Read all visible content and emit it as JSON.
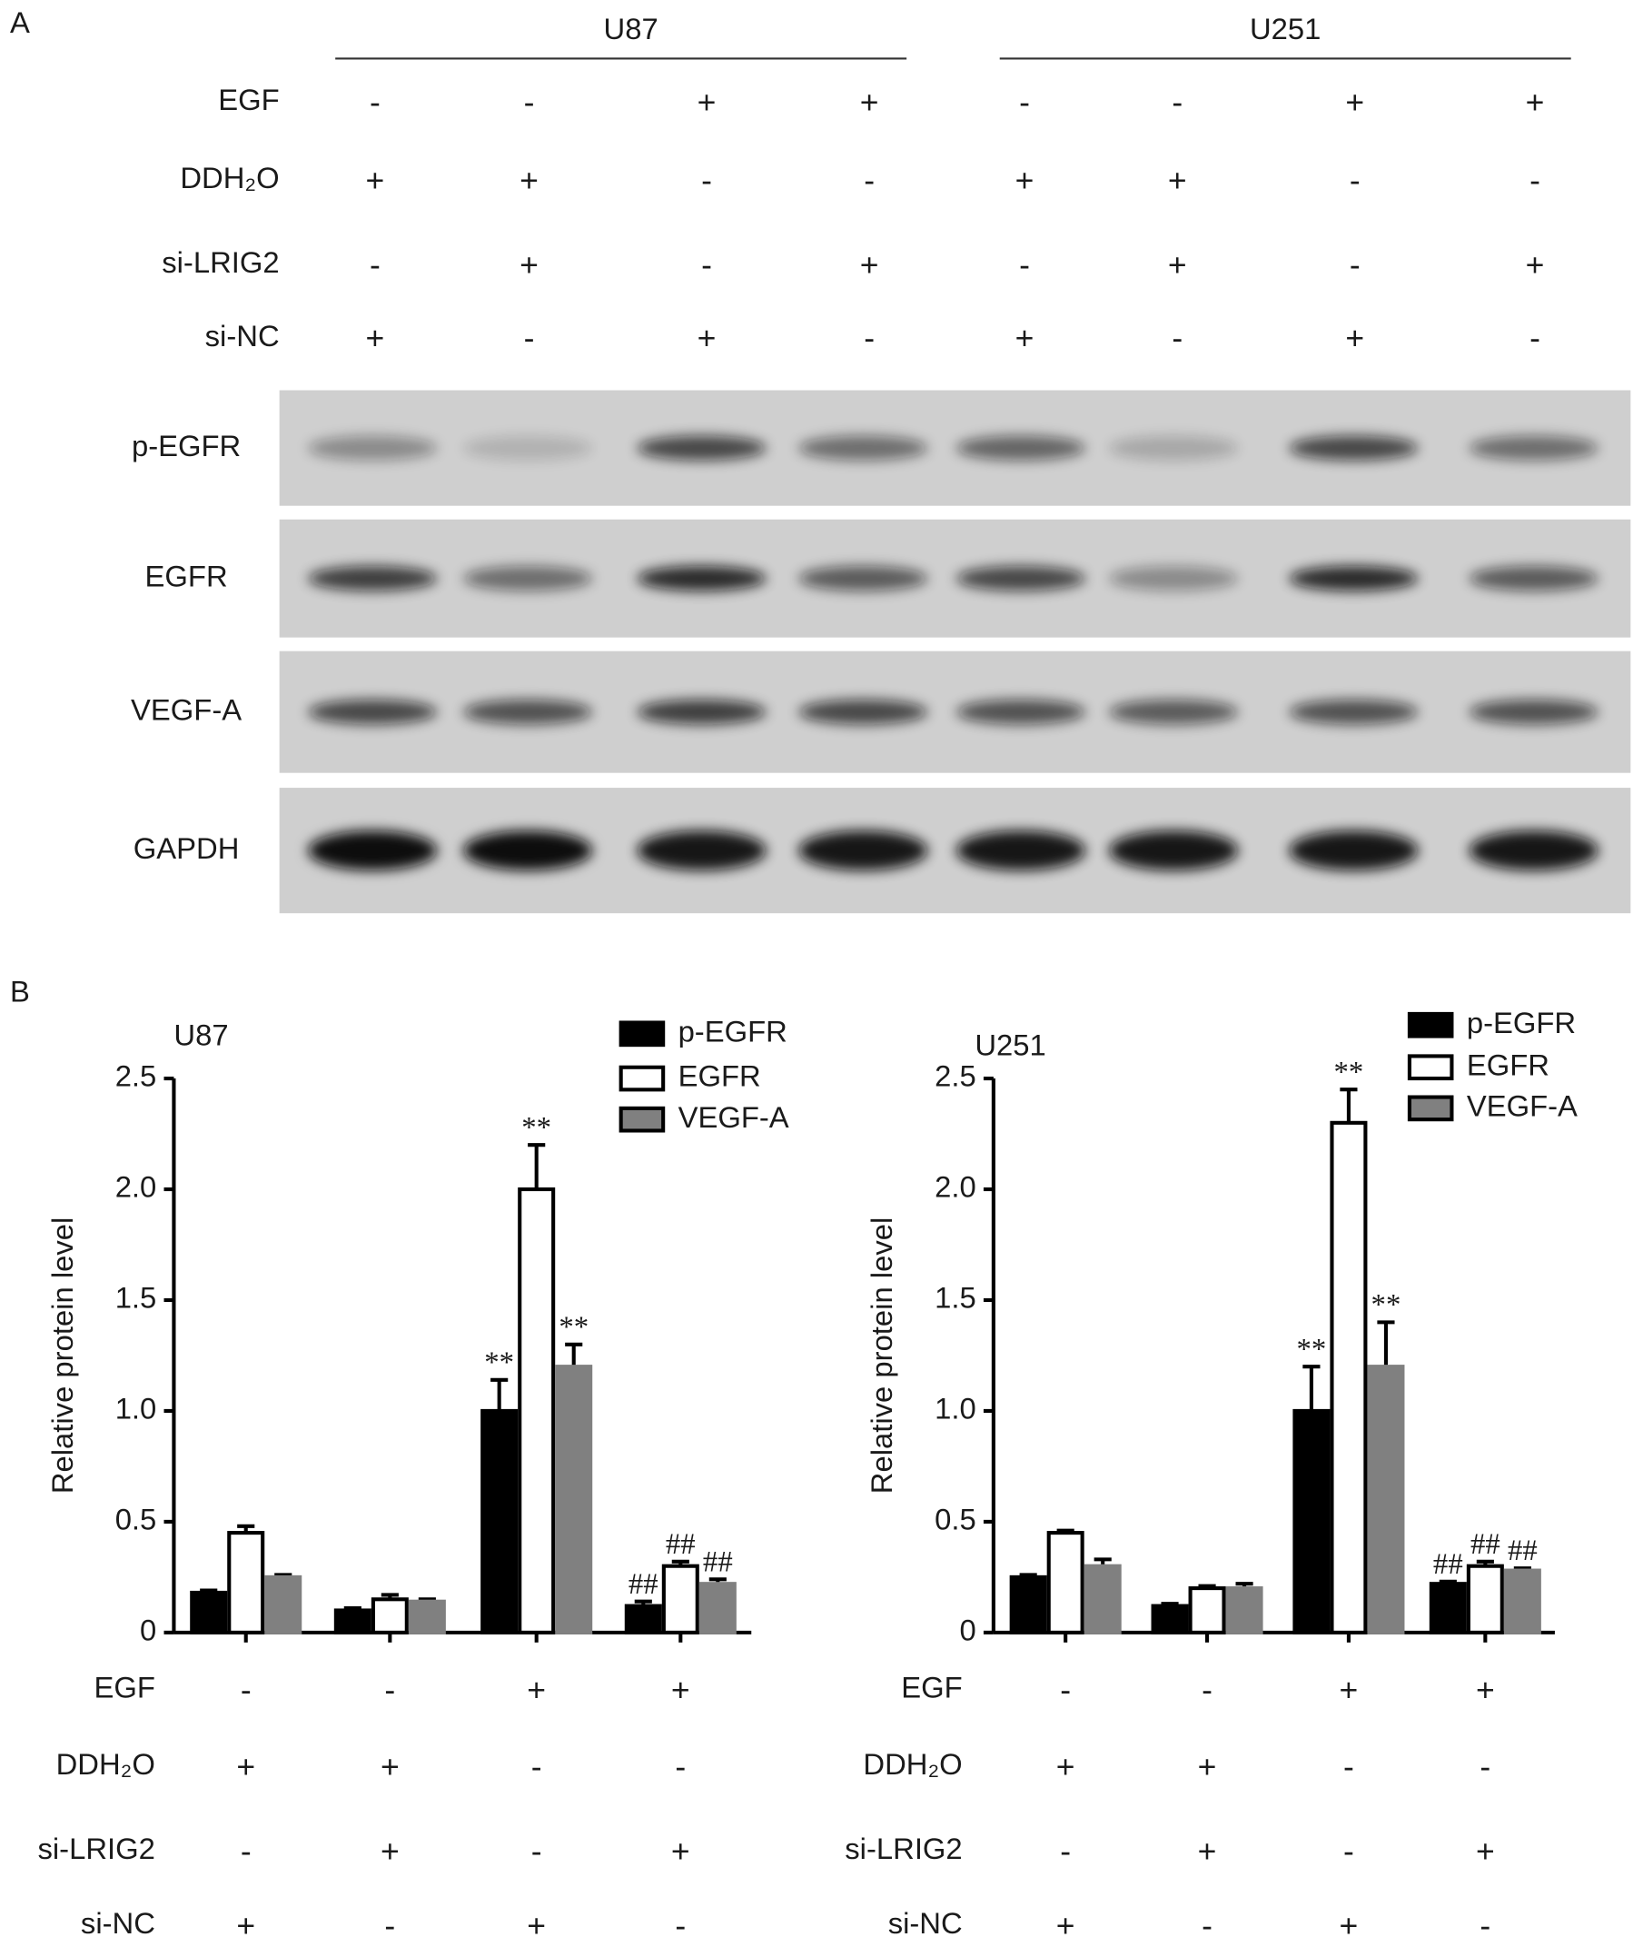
{
  "panel_labels": [
    "A",
    "B"
  ],
  "blot": {
    "cell_lines": [
      "U87",
      "U251"
    ],
    "conditions": [
      {
        "label": "EGF",
        "signs": [
          "-",
          "-",
          "+",
          "+",
          "-",
          "-",
          "+",
          "+"
        ]
      },
      {
        "label": "DDH₂O",
        "signs": [
          "+",
          "+",
          "-",
          "-",
          "+",
          "+",
          "-",
          "-"
        ]
      },
      {
        "label": "si-LRIG2",
        "signs": [
          "-",
          "+",
          "-",
          "+",
          "-",
          "+",
          "-",
          "+"
        ]
      },
      {
        "label": "si-NC",
        "signs": [
          "+",
          "-",
          "+",
          "-",
          "+",
          "-",
          "+",
          "-"
        ]
      }
    ],
    "bands": [
      "p-EGFR",
      "EGFR",
      "VEGF-A",
      "GAPDH"
    ]
  },
  "chart_data": [
    {
      "type": "bar",
      "title": "U87",
      "y_label": "Relative protein level",
      "ylim": [
        0,
        2.5
      ],
      "yticks": [
        0,
        0.5,
        {
          "value": 1,
          "label": "1.0"
        },
        1.5,
        {
          "value": 2,
          "label": "2.0"
        },
        2.5
      ],
      "conditions": [
        {
          "label": "EGF",
          "signs": [
            "-",
            "-",
            "+",
            "+"
          ]
        },
        {
          "label": "DDH₂O",
          "signs": [
            "+",
            "+",
            "-",
            "-"
          ]
        },
        {
          "label": "si-LRIG2",
          "signs": [
            "-",
            "+",
            "-",
            "+"
          ]
        },
        {
          "label": "si-NC",
          "signs": [
            "+",
            "-",
            "+",
            "-"
          ]
        }
      ],
      "series": [
        {
          "name": "p-EGFR",
          "color": "#000000",
          "values": [
            0.18,
            0.1,
            1.0,
            0.12
          ],
          "errors": [
            0.01,
            0.01,
            0.14,
            0.02
          ],
          "annotations": [
            null,
            null,
            "**",
            "##"
          ]
        },
        {
          "name": "EGFR",
          "color": "#ffffff",
          "values": [
            0.45,
            0.15,
            2.0,
            0.3
          ],
          "errors": [
            0.03,
            0.02,
            0.2,
            0.02
          ],
          "annotations": [
            null,
            null,
            "**",
            "##"
          ]
        },
        {
          "name": "VEGF-A",
          "color": "#808080",
          "values": [
            0.25,
            0.14,
            1.2,
            0.22
          ],
          "errors": [
            0.01,
            0.01,
            0.1,
            0.02
          ],
          "annotations": [
            null,
            null,
            "**",
            "##"
          ]
        }
      ]
    },
    {
      "type": "bar",
      "title": "U251",
      "y_label": "Relative protein level",
      "ylim": [
        0,
        2.5
      ],
      "yticks": [
        0,
        0.5,
        {
          "value": 1,
          "label": "1.0"
        },
        1.5,
        {
          "value": 2,
          "label": "2.0"
        },
        2.5
      ],
      "conditions": [
        {
          "label": "EGF",
          "signs": [
            "-",
            "-",
            "+",
            "+"
          ]
        },
        {
          "label": "DDH₂O",
          "signs": [
            "+",
            "+",
            "-",
            "-"
          ]
        },
        {
          "label": "si-LRIG2",
          "signs": [
            "-",
            "+",
            "-",
            "+"
          ]
        },
        {
          "label": "si-NC",
          "signs": [
            "+",
            "-",
            "+",
            "-"
          ]
        }
      ],
      "series": [
        {
          "name": "p-EGFR",
          "color": "#000000",
          "values": [
            0.25,
            0.12,
            1.0,
            0.22
          ],
          "errors": [
            0.01,
            0.01,
            0.2,
            0.01
          ],
          "annotations": [
            null,
            null,
            "**",
            "##"
          ]
        },
        {
          "name": "EGFR",
          "color": "#ffffff",
          "values": [
            0.45,
            0.2,
            2.3,
            0.3
          ],
          "errors": [
            0.01,
            0.01,
            0.15,
            0.02
          ],
          "annotations": [
            null,
            null,
            "**",
            "##"
          ]
        },
        {
          "name": "VEGF-A",
          "color": "#808080",
          "values": [
            0.3,
            0.2,
            1.2,
            0.28
          ],
          "errors": [
            0.03,
            0.02,
            0.2,
            0.01
          ],
          "annotations": [
            null,
            null,
            "**",
            "##"
          ]
        }
      ]
    }
  ]
}
